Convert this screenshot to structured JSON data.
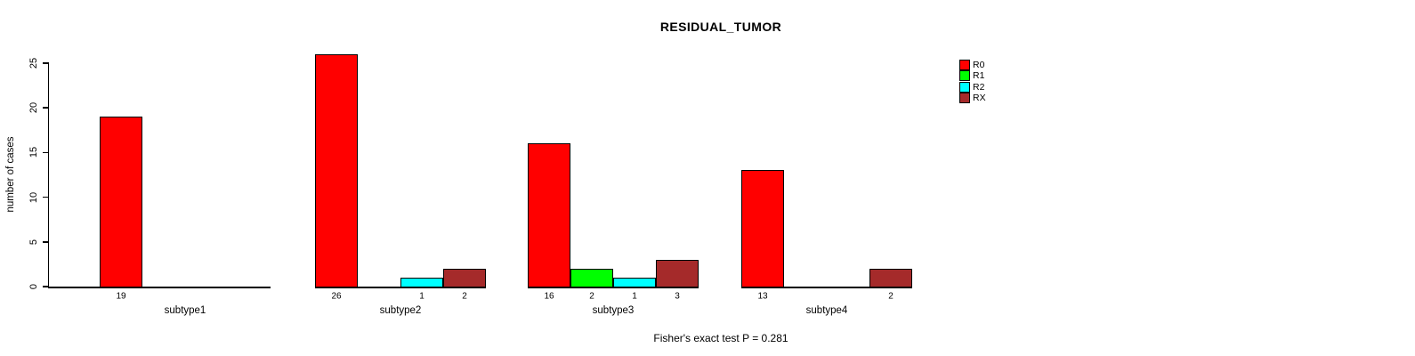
{
  "chart_data": {
    "type": "bar",
    "title": "RESIDUAL_TUMOR",
    "subtitle": "Fisher's exact test P = 0.281",
    "xlabel": "",
    "ylabel": "number of cases",
    "ylim": [
      0,
      25
    ],
    "yticks": [
      0,
      5,
      10,
      15,
      20,
      25
    ],
    "grid": false,
    "legend_position": "top-right",
    "bar_value_labels": "shown under each bar when value > 0",
    "categories": [
      "subtype1",
      "subtype2",
      "subtype3",
      "subtype4"
    ],
    "series": [
      {
        "name": "R0",
        "color": "#ff0000",
        "values": [
          19,
          26,
          16,
          13
        ]
      },
      {
        "name": "R1",
        "color": "#00ff00",
        "values": [
          0,
          0,
          2,
          0
        ]
      },
      {
        "name": "R2",
        "color": "#00ffff",
        "values": [
          0,
          1,
          1,
          0
        ]
      },
      {
        "name": "RX",
        "color": "#a52a2a",
        "values": [
          0,
          2,
          3,
          2
        ]
      }
    ],
    "colors": {
      "axis": "#000000",
      "background": "#ffffff"
    }
  }
}
